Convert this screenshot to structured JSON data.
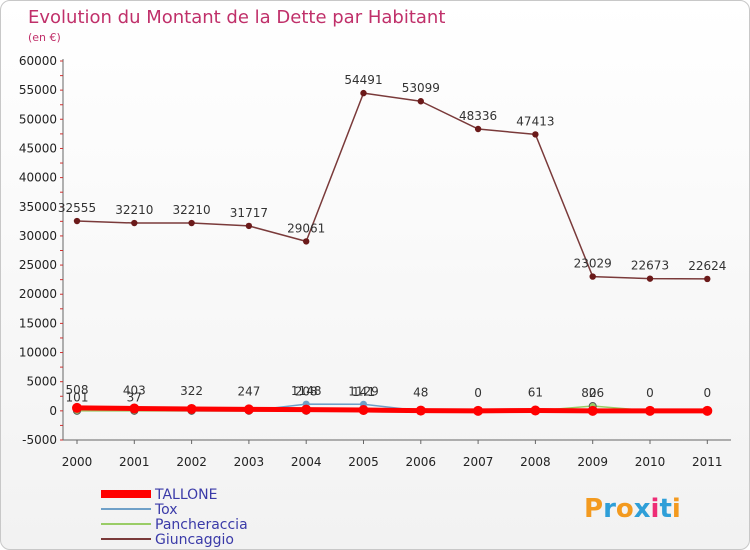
{
  "chart_data": {
    "type": "line",
    "title": "Evolution du Montant de la Dette par Habitant",
    "subtitle": "(en €)",
    "categories": [
      "2000",
      "2001",
      "2002",
      "2003",
      "2004",
      "2005",
      "2006",
      "2007",
      "2008",
      "2009",
      "2010",
      "2011"
    ],
    "ylim": [
      -5000,
      60000
    ],
    "yticks": [
      -5000,
      0,
      5000,
      10000,
      15000,
      20000,
      25000,
      30000,
      35000,
      40000,
      45000,
      50000,
      55000,
      60000
    ],
    "grid": false,
    "legend_position": "bottom-left",
    "series": [
      {
        "name": "TALLONE",
        "color": "#ff0000",
        "values": [
          508,
          403,
          322,
          247,
          208,
          141,
          48,
          0,
          61,
          0,
          0,
          0
        ],
        "labels": [
          "508",
          "403",
          "322",
          "247",
          "208",
          "141",
          "48",
          "0",
          "61",
          "0",
          "0",
          "0"
        ]
      },
      {
        "name": "Tox",
        "color": "#6fa0c8",
        "values": [
          101,
          37,
          0,
          0,
          1148,
          1129,
          0,
          0,
          0,
          0,
          0,
          0
        ],
        "labels": [
          "101",
          "37",
          "",
          "",
          "1148",
          "1129",
          "",
          "",
          "",
          "",
          "",
          ""
        ]
      },
      {
        "name": "Pancheraccia",
        "color": "#99cc66",
        "values": [
          0,
          0,
          0,
          0,
          0,
          0,
          0,
          0,
          0,
          826,
          0,
          0
        ],
        "labels": [
          "",
          "",
          "",
          "",
          "",
          "",
          "",
          "",
          "",
          "826",
          "",
          ""
        ]
      },
      {
        "name": "Giuncaggio",
        "color": "#7a3a3a",
        "values": [
          32555,
          32210,
          32210,
          31717,
          29061,
          54491,
          53099,
          48336,
          47413,
          23029,
          22673,
          22624
        ],
        "labels": [
          "32555",
          "32210",
          "32210",
          "31717",
          "29061",
          "54491",
          "53099",
          "48336",
          "47413",
          "23029",
          "22673",
          "22624"
        ]
      }
    ]
  },
  "logo": {
    "text": "Proxiti",
    "colors": [
      "#f39a1f",
      "#2f9fd8",
      "#f39a1f",
      "#2f9fd8",
      "#ee2d76",
      "#2f9fd8",
      "#f39a1f"
    ]
  }
}
